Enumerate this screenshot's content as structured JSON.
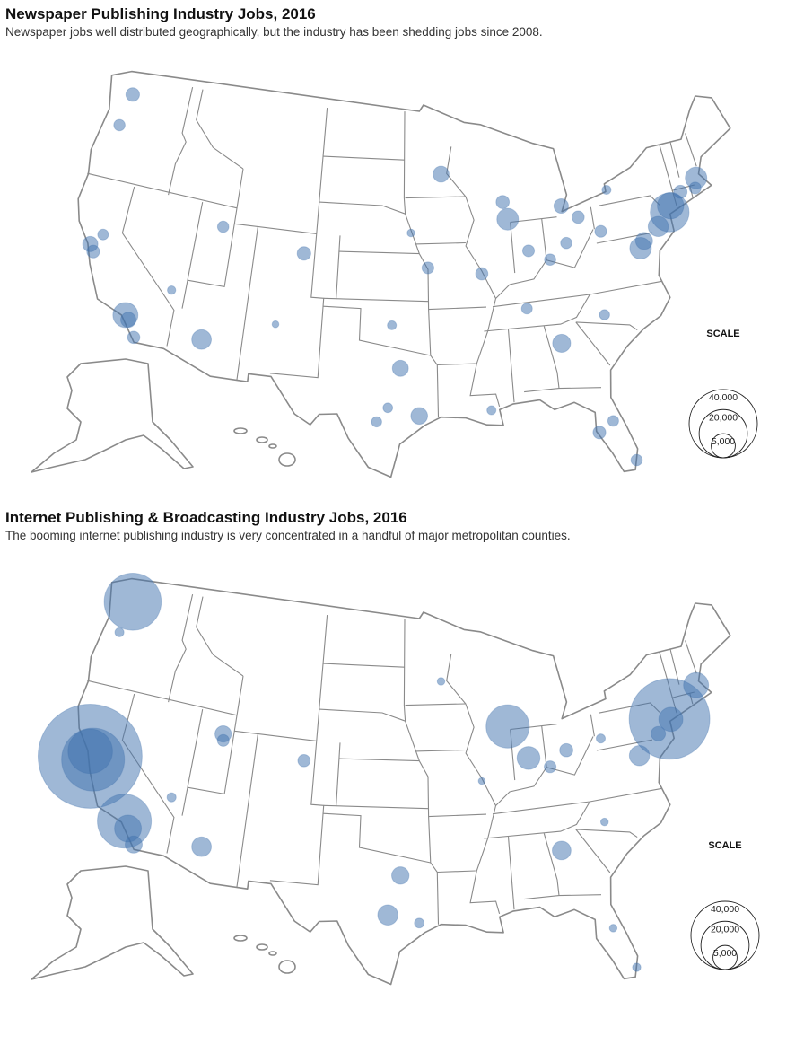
{
  "maps": [
    {
      "title": "Newspaper Publishing Industry Jobs, 2016",
      "subtitle": "Newspaper jobs well distributed geographically, but the industry has been shedding jobs since 2008.",
      "scale_title": "SCALE",
      "scale": [
        {
          "value": 40000,
          "label": "40,000"
        },
        {
          "value": 20000,
          "label": "20,000"
        },
        {
          "value": 5000,
          "label": "5,000"
        }
      ],
      "points": [
        {
          "lon": -74.0,
          "lat": 40.7,
          "jobs": 13000
        },
        {
          "lon": -73.8,
          "lat": 41.1,
          "jobs": 6000
        },
        {
          "lon": -75.2,
          "lat": 40.0,
          "jobs": 3500
        },
        {
          "lon": -77.0,
          "lat": 38.9,
          "jobs": 4000
        },
        {
          "lon": -76.6,
          "lat": 39.3,
          "jobs": 2500
        },
        {
          "lon": -71.1,
          "lat": 42.4,
          "jobs": 4000
        },
        {
          "lon": -71.4,
          "lat": 41.8,
          "jobs": 1200
        },
        {
          "lon": -72.7,
          "lat": 41.8,
          "jobs": 1500
        },
        {
          "lon": -118.2,
          "lat": 34.05,
          "jobs": 5400
        },
        {
          "lon": -117.9,
          "lat": 33.8,
          "jobs": 2000
        },
        {
          "lon": -117.2,
          "lat": 32.8,
          "jobs": 1300
        },
        {
          "lon": -122.3,
          "lat": 37.8,
          "jobs": 2000
        },
        {
          "lon": -121.9,
          "lat": 37.4,
          "jobs": 1400
        },
        {
          "lon": -121.5,
          "lat": 38.6,
          "jobs": 1000
        },
        {
          "lon": -112.1,
          "lat": 33.5,
          "jobs": 3300
        },
        {
          "lon": -87.7,
          "lat": 41.9,
          "jobs": 4000
        },
        {
          "lon": -84.4,
          "lat": 33.8,
          "jobs": 2800
        },
        {
          "lon": -95.4,
          "lat": 29.8,
          "jobs": 2400
        },
        {
          "lon": -96.8,
          "lat": 32.8,
          "jobs": 2200
        },
        {
          "lon": -97.7,
          "lat": 30.3,
          "jobs": 800
        },
        {
          "lon": -98.5,
          "lat": 29.4,
          "jobs": 900
        },
        {
          "lon": -93.3,
          "lat": 44.98,
          "jobs": 2200
        },
        {
          "lon": -88.0,
          "lat": 43.0,
          "jobs": 1500
        },
        {
          "lon": -83.0,
          "lat": 42.35,
          "jobs": 1800
        },
        {
          "lon": -81.7,
          "lat": 41.5,
          "jobs": 1300
        },
        {
          "lon": -83.0,
          "lat": 40.0,
          "jobs": 1100
        },
        {
          "lon": -84.5,
          "lat": 39.1,
          "jobs": 1100
        },
        {
          "lon": -86.2,
          "lat": 39.8,
          "jobs": 1200
        },
        {
          "lon": -90.2,
          "lat": 38.6,
          "jobs": 1300
        },
        {
          "lon": -94.6,
          "lat": 39.1,
          "jobs": 1200
        },
        {
          "lon": -104.9,
          "lat": 39.7,
          "jobs": 1600
        },
        {
          "lon": -111.9,
          "lat": 40.7,
          "jobs": 1100
        },
        {
          "lon": -122.3,
          "lat": 47.6,
          "jobs": 1600
        },
        {
          "lon": -122.7,
          "lat": 45.5,
          "jobs": 1100
        },
        {
          "lon": -80.2,
          "lat": 25.8,
          "jobs": 1100
        },
        {
          "lon": -82.5,
          "lat": 27.9,
          "jobs": 1400
        },
        {
          "lon": -81.4,
          "lat": 28.5,
          "jobs": 1000
        },
        {
          "lon": -80.8,
          "lat": 35.2,
          "jobs": 900
        },
        {
          "lon": -86.8,
          "lat": 36.2,
          "jobs": 1000
        },
        {
          "lon": -90.1,
          "lat": 30.0,
          "jobs": 700
        },
        {
          "lon": -97.5,
          "lat": 35.5,
          "jobs": 700
        },
        {
          "lon": -80.0,
          "lat": 40.4,
          "jobs": 1200
        },
        {
          "lon": -78.9,
          "lat": 42.9,
          "jobs": 700
        },
        {
          "lon": -115.1,
          "lat": 36.2,
          "jobs": 600
        },
        {
          "lon": -106.6,
          "lat": 35.1,
          "jobs": 400
        },
        {
          "lon": -96.0,
          "lat": 41.3,
          "jobs": 500
        }
      ]
    },
    {
      "title": "Internet Publishing & Broadcasting Industry Jobs, 2016",
      "subtitle": "The booming internet publishing industry is very concentrated in a handful of major metropolitan counties.",
      "scale_title": "SCALE",
      "scale": [
        {
          "value": 40000,
          "label": "40,000"
        },
        {
          "value": 20000,
          "label": "20,000"
        },
        {
          "value": 5000,
          "label": "5,000"
        }
      ],
      "points": [
        {
          "lon": -122.2,
          "lat": 37.5,
          "jobs": 93000
        },
        {
          "lon": -121.9,
          "lat": 37.35,
          "jobs": 34000
        },
        {
          "lon": -122.3,
          "lat": 37.8,
          "jobs": 17000
        },
        {
          "lon": -122.3,
          "lat": 47.6,
          "jobs": 28000
        },
        {
          "lon": -118.3,
          "lat": 34.1,
          "jobs": 25000
        },
        {
          "lon": -117.9,
          "lat": 33.7,
          "jobs": 6200
        },
        {
          "lon": -117.2,
          "lat": 32.8,
          "jobs": 2500
        },
        {
          "lon": -74.0,
          "lat": 40.75,
          "jobs": 56000
        },
        {
          "lon": -73.9,
          "lat": 40.7,
          "jobs": 5000
        },
        {
          "lon": -71.1,
          "lat": 42.4,
          "jobs": 5400
        },
        {
          "lon": -77.1,
          "lat": 38.9,
          "jobs": 3500
        },
        {
          "lon": -75.2,
          "lat": 40.0,
          "jobs": 1800
        },
        {
          "lon": -87.7,
          "lat": 41.9,
          "jobs": 16000
        },
        {
          "lon": -86.2,
          "lat": 39.8,
          "jobs": 4500
        },
        {
          "lon": -84.4,
          "lat": 33.8,
          "jobs": 3000
        },
        {
          "lon": -97.7,
          "lat": 30.3,
          "jobs": 3500
        },
        {
          "lon": -96.8,
          "lat": 32.8,
          "jobs": 2600
        },
        {
          "lon": -95.4,
          "lat": 29.8,
          "jobs": 800
        },
        {
          "lon": -112.1,
          "lat": 33.5,
          "jobs": 3300
        },
        {
          "lon": -111.9,
          "lat": 40.7,
          "jobs": 2300
        },
        {
          "lon": -111.8,
          "lat": 40.3,
          "jobs": 1200
        },
        {
          "lon": -104.9,
          "lat": 39.7,
          "jobs": 1300
        },
        {
          "lon": -83.0,
          "lat": 40.0,
          "jobs": 1500
        },
        {
          "lon": -84.5,
          "lat": 39.1,
          "jobs": 1200
        },
        {
          "lon": -93.3,
          "lat": 44.98,
          "jobs": 500
        },
        {
          "lon": -81.4,
          "lat": 28.5,
          "jobs": 500
        },
        {
          "lon": -80.2,
          "lat": 25.8,
          "jobs": 600
        },
        {
          "lon": -80.8,
          "lat": 35.2,
          "jobs": 500
        },
        {
          "lon": -115.1,
          "lat": 36.2,
          "jobs": 700
        },
        {
          "lon": -122.7,
          "lat": 45.5,
          "jobs": 700
        },
        {
          "lon": -80.0,
          "lat": 40.4,
          "jobs": 700
        },
        {
          "lon": -90.2,
          "lat": 38.6,
          "jobs": 400
        }
      ]
    }
  ]
}
